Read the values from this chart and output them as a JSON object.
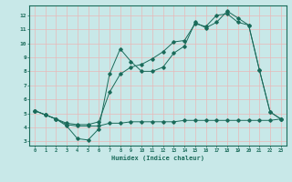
{
  "xlabel": "Humidex (Indice chaleur)",
  "bg_color": "#c8e8e8",
  "grid_color": "#e8b8b8",
  "line_color": "#1a6b5a",
  "xlim": [
    -0.5,
    23.5
  ],
  "ylim": [
    2.7,
    12.7
  ],
  "yticks": [
    3,
    4,
    5,
    6,
    7,
    8,
    9,
    10,
    11,
    12
  ],
  "xticks": [
    0,
    1,
    2,
    3,
    4,
    5,
    6,
    7,
    8,
    9,
    10,
    11,
    12,
    13,
    14,
    15,
    16,
    17,
    18,
    19,
    20,
    21,
    22,
    23
  ],
  "line1_x": [
    0,
    1,
    2,
    3,
    4,
    5,
    6,
    7,
    8,
    9,
    10,
    11,
    12,
    13,
    14,
    15,
    16,
    17,
    18,
    19,
    20,
    21,
    22,
    23
  ],
  "line1_y": [
    5.2,
    4.9,
    4.6,
    4.1,
    3.2,
    3.1,
    3.9,
    7.8,
    9.6,
    8.7,
    8.0,
    8.0,
    8.3,
    9.3,
    9.8,
    11.5,
    11.1,
    11.5,
    12.3,
    11.8,
    11.3,
    8.1,
    5.1,
    4.6
  ],
  "line2_x": [
    0,
    1,
    2,
    3,
    4,
    5,
    6,
    7,
    8,
    9,
    10,
    11,
    12,
    13,
    14,
    15,
    16,
    17,
    18,
    19,
    20,
    21,
    22,
    23
  ],
  "line2_y": [
    5.2,
    4.9,
    4.6,
    4.3,
    4.2,
    4.2,
    4.4,
    6.5,
    7.8,
    8.3,
    8.5,
    8.9,
    9.4,
    10.1,
    10.2,
    11.4,
    11.2,
    12.0,
    12.1,
    11.5,
    11.3,
    8.1,
    5.1,
    4.6
  ],
  "line3_x": [
    0,
    1,
    2,
    3,
    4,
    5,
    6,
    7,
    8,
    9,
    10,
    11,
    12,
    13,
    14,
    15,
    16,
    17,
    18,
    19,
    20,
    21,
    22,
    23
  ],
  "line3_y": [
    5.2,
    4.9,
    4.6,
    4.2,
    4.1,
    4.1,
    4.1,
    4.3,
    4.3,
    4.4,
    4.4,
    4.4,
    4.4,
    4.4,
    4.5,
    4.5,
    4.5,
    4.5,
    4.5,
    4.5,
    4.5,
    4.5,
    4.5,
    4.6
  ]
}
